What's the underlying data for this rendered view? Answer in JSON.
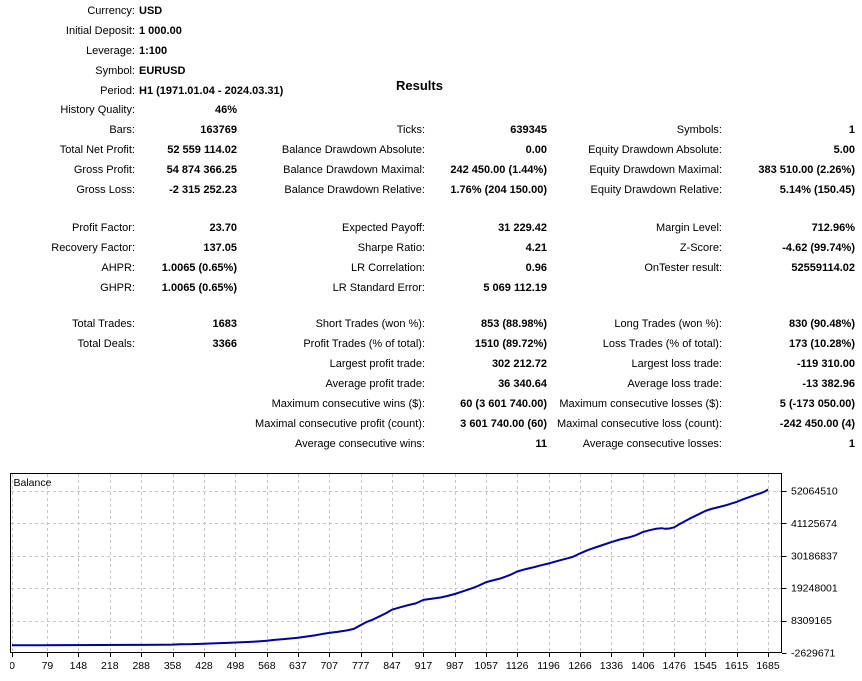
{
  "results_title": "Results",
  "stats": {
    "header": [
      {
        "c1l": "Currency:",
        "c1v": "USD",
        "c2l": "",
        "c2v": "",
        "c3l": "",
        "c3v": ""
      },
      {
        "c1l": "Initial Deposit:",
        "c1v": "1 000.00",
        "c2l": "",
        "c2v": "",
        "c3l": "",
        "c3v": ""
      },
      {
        "c1l": "Leverage:",
        "c1v": "1:100",
        "c2l": "",
        "c2v": "",
        "c3l": "",
        "c3v": ""
      },
      {
        "c1l": "Symbol:",
        "c1v": "EURUSD",
        "c2l": "",
        "c2v": "",
        "c3l": "",
        "c3v": ""
      },
      {
        "c1l": "Period:",
        "c1v": "H1 (1971.01.04 - 2024.03.31)",
        "c2l": "",
        "c2v": "",
        "c3l": "",
        "c3v": ""
      }
    ],
    "group1": [
      {
        "c1l": "History Quality:",
        "c1v": "46%",
        "c2l": "",
        "c2v": "",
        "c3l": "",
        "c3v": ""
      },
      {
        "c1l": "Bars:",
        "c1v": "163769",
        "c2l": "Ticks:",
        "c2v": "639345",
        "c3l": "Symbols:",
        "c3v": "1"
      },
      {
        "c1l": "Total Net Profit:",
        "c1v": "52 559 114.02",
        "c2l": "Balance Drawdown Absolute:",
        "c2v": "0.00",
        "c3l": "Equity Drawdown Absolute:",
        "c3v": "5.00"
      },
      {
        "c1l": "Gross Profit:",
        "c1v": "54 874 366.25",
        "c2l": "Balance Drawdown Maximal:",
        "c2v": "242 450.00 (1.44%)",
        "c3l": "Equity Drawdown Maximal:",
        "c3v": "383 510.00 (2.26%)"
      },
      {
        "c1l": "Gross Loss:",
        "c1v": "-2 315 252.23",
        "c2l": "Balance Drawdown Relative:",
        "c2v": "1.76% (204 150.00)",
        "c3l": "Equity Drawdown Relative:",
        "c3v": "5.14% (150.45)"
      }
    ],
    "group2": [
      {
        "c1l": "Profit Factor:",
        "c1v": "23.70",
        "c2l": "Expected Payoff:",
        "c2v": "31 229.42",
        "c3l": "Margin Level:",
        "c3v": "712.96%"
      },
      {
        "c1l": "Recovery Factor:",
        "c1v": "137.05",
        "c2l": "Sharpe Ratio:",
        "c2v": "4.21",
        "c3l": "Z-Score:",
        "c3v": "-4.62 (99.74%)"
      },
      {
        "c1l": "AHPR:",
        "c1v": "1.0065 (0.65%)",
        "c2l": "LR Correlation:",
        "c2v": "0.96",
        "c3l": "OnTester result:",
        "c3v": "52559114.02"
      },
      {
        "c1l": "GHPR:",
        "c1v": "1.0065 (0.65%)",
        "c2l": "LR Standard Error:",
        "c2v": "5 069 112.19",
        "c3l": "",
        "c3v": ""
      }
    ],
    "group3": [
      {
        "c1l": "Total Trades:",
        "c1v": "1683",
        "c2l": "Short Trades (won %):",
        "c2v": "853 (88.98%)",
        "c3l": "Long Trades (won %):",
        "c3v": "830 (90.48%)"
      },
      {
        "c1l": "Total Deals:",
        "c1v": "3366",
        "c2l": "Profit Trades (% of total):",
        "c2v": "1510 (89.72%)",
        "c3l": "Loss Trades (% of total):",
        "c3v": "173 (10.28%)"
      },
      {
        "c1l": "",
        "c1v": "",
        "c2l": "Largest profit trade:",
        "c2v": "302 212.72",
        "c3l": "Largest loss trade:",
        "c3v": "-119 310.00"
      },
      {
        "c1l": "",
        "c1v": "",
        "c2l": "Average profit trade:",
        "c2v": "36 340.64",
        "c3l": "Average loss trade:",
        "c3v": "-13 382.96"
      },
      {
        "c1l": "",
        "c1v": "",
        "c2l": "Maximum consecutive wins ($):",
        "c2v": "60 (3 601 740.00)",
        "c3l": "Maximum consecutive losses ($):",
        "c3v": "5 (-173 050.00)"
      },
      {
        "c1l": "",
        "c1v": "",
        "c2l": "Maximal consecutive profit (count):",
        "c2v": "3 601 740.00 (60)",
        "c3l": "Maximal consecutive loss (count):",
        "c3v": "-242 450.00 (4)"
      },
      {
        "c1l": "",
        "c1v": "",
        "c2l": "Average consecutive wins:",
        "c2v": "11",
        "c3l": "Average consecutive losses:",
        "c3v": "1"
      }
    ]
  },
  "chart_data": {
    "type": "line",
    "title": "Balance",
    "xlabel": "",
    "ylabel": "",
    "grid": true,
    "x_ticks": [
      0,
      79,
      148,
      218,
      288,
      358,
      428,
      498,
      568,
      637,
      707,
      777,
      847,
      917,
      987,
      1057,
      1126,
      1196,
      1266,
      1336,
      1406,
      1476,
      1545,
      1615,
      1685
    ],
    "y_ticks": [
      52064510,
      41125674,
      30186837,
      19248001,
      8309165,
      -2629671
    ],
    "line_color": "#0000A0",
    "grid_color": "#c6c6c6",
    "series": [
      {
        "name": "Balance",
        "points": [
          [
            0,
            1000
          ],
          [
            60,
            15000
          ],
          [
            120,
            30000
          ],
          [
            200,
            60000
          ],
          [
            290,
            110000
          ],
          [
            358,
            200000
          ],
          [
            375,
            330000
          ],
          [
            400,
            380000
          ],
          [
            428,
            520000
          ],
          [
            455,
            650000
          ],
          [
            480,
            780000
          ],
          [
            498,
            900000
          ],
          [
            525,
            1080000
          ],
          [
            550,
            1300000
          ],
          [
            568,
            1500000
          ],
          [
            585,
            1800000
          ],
          [
            605,
            2050000
          ],
          [
            620,
            2250000
          ],
          [
            637,
            2500000
          ],
          [
            655,
            2900000
          ],
          [
            675,
            3300000
          ],
          [
            695,
            3900000
          ],
          [
            707,
            4150000
          ],
          [
            725,
            4500000
          ],
          [
            745,
            4950000
          ],
          [
            762,
            5500000
          ],
          [
            777,
            6800000
          ],
          [
            790,
            7800000
          ],
          [
            805,
            8700000
          ],
          [
            820,
            9800000
          ],
          [
            835,
            10900000
          ],
          [
            847,
            12000000
          ],
          [
            865,
            12800000
          ],
          [
            885,
            13600000
          ],
          [
            900,
            14100000
          ],
          [
            917,
            15300000
          ],
          [
            935,
            15700000
          ],
          [
            955,
            16100000
          ],
          [
            970,
            16600000
          ],
          [
            987,
            17300000
          ],
          [
            1005,
            18200000
          ],
          [
            1025,
            19200000
          ],
          [
            1040,
            20100000
          ],
          [
            1057,
            21300000
          ],
          [
            1075,
            22000000
          ],
          [
            1090,
            22600000
          ],
          [
            1110,
            23700000
          ],
          [
            1126,
            24900000
          ],
          [
            1145,
            25700000
          ],
          [
            1165,
            26400000
          ],
          [
            1180,
            27000000
          ],
          [
            1196,
            27600000
          ],
          [
            1215,
            28400000
          ],
          [
            1235,
            29200000
          ],
          [
            1250,
            29800000
          ],
          [
            1266,
            31000000
          ],
          [
            1285,
            32200000
          ],
          [
            1300,
            33000000
          ],
          [
            1320,
            34000000
          ],
          [
            1336,
            34800000
          ],
          [
            1355,
            35700000
          ],
          [
            1375,
            36400000
          ],
          [
            1390,
            37100000
          ],
          [
            1406,
            38200000
          ],
          [
            1420,
            38800000
          ],
          [
            1435,
            39300000
          ],
          [
            1448,
            39500000
          ],
          [
            1456,
            39300000
          ],
          [
            1465,
            39400000
          ],
          [
            1476,
            39800000
          ],
          [
            1488,
            40900000
          ],
          [
            1500,
            41900000
          ],
          [
            1515,
            43100000
          ],
          [
            1530,
            44200000
          ],
          [
            1545,
            45300000
          ],
          [
            1558,
            46000000
          ],
          [
            1572,
            46500000
          ],
          [
            1590,
            47200000
          ],
          [
            1605,
            47900000
          ],
          [
            1615,
            48400000
          ],
          [
            1630,
            49300000
          ],
          [
            1645,
            50100000
          ],
          [
            1658,
            50800000
          ],
          [
            1670,
            51400000
          ],
          [
            1678,
            51900000
          ],
          [
            1685,
            52560114
          ]
        ]
      }
    ]
  }
}
